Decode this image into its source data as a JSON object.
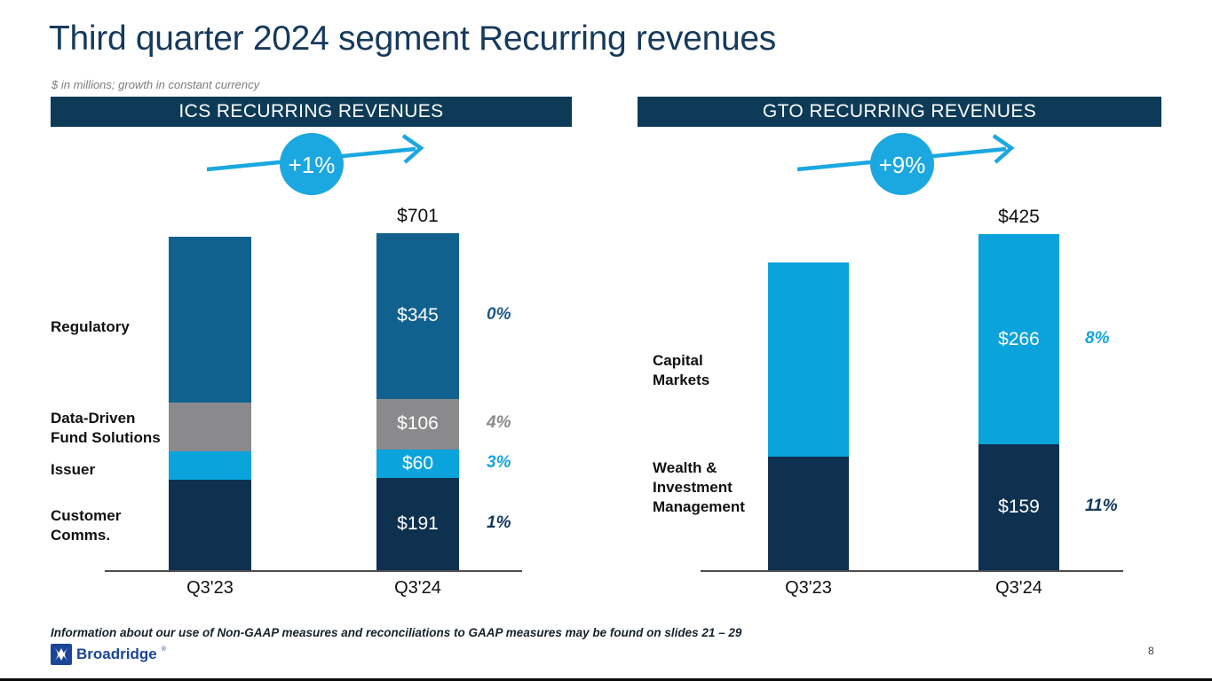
{
  "slide": {
    "title": "Third quarter 2024 segment Recurring revenues",
    "subtitle": "$ in millions; growth in constant currency",
    "footnote": "Information about our use of Non-GAAP measures and reconciliations to GAAP measures may be found on slides 21 – 29",
    "page_number": "8",
    "logo": {
      "text": "Broadridge",
      "mark": "®"
    },
    "accent_colors": {
      "header_navy": "#0D3A57",
      "title_navy": "#163A5C",
      "badge_cyan": "#1BA7E0",
      "axis_gray": "#4d4d4d"
    }
  },
  "chart_data": [
    {
      "type": "bar",
      "stacked": true,
      "header": "ICS RECURRING REVENUES",
      "growth_badge": "+1%",
      "units": "$ in millions",
      "x_categories": [
        "Q3'23",
        "Q3'24"
      ],
      "q323_values_estimated": true,
      "totals": [
        null,
        "$701"
      ],
      "series": [
        {
          "name": "Regulatory",
          "side_label": "Regulatory",
          "color": "#11618F",
          "values": [
            345,
            345
          ],
          "value_labels": [
            null,
            "$345"
          ],
          "growth": "0%",
          "growth_color": "#1D5A8A"
        },
        {
          "name": "Data-Driven Fund Solutions",
          "side_label": "Data-Driven\nFund Solutions",
          "color": "#8A8A8D",
          "values": [
            102,
            106
          ],
          "value_labels": [
            null,
            "$106"
          ],
          "growth": "4%",
          "growth_color": "#8A8A8D"
        },
        {
          "name": "Issuer",
          "side_label": "Issuer",
          "color": "#0BA3DC",
          "values": [
            58,
            60
          ],
          "value_labels": [
            null,
            "$60"
          ],
          "growth": "3%",
          "growth_color": "#14A5DE"
        },
        {
          "name": "Customer Comms.",
          "side_label": "Customer\nComms.",
          "color": "#0E3150",
          "values": [
            189,
            191
          ],
          "value_labels": [
            null,
            "$191"
          ],
          "growth": "1%",
          "growth_color": "#12395C"
        }
      ]
    },
    {
      "type": "bar",
      "stacked": true,
      "header": "GTO RECURRING REVENUES",
      "growth_badge": "+9%",
      "units": "$ in millions",
      "x_categories": [
        "Q3'23",
        "Q3'24"
      ],
      "q323_values_estimated": true,
      "totals": [
        null,
        "$425"
      ],
      "series": [
        {
          "name": "Capital Markets",
          "side_label": "Capital\nMarkets",
          "color": "#0BA3DC",
          "values": [
            246,
            266
          ],
          "value_labels": [
            null,
            "$266"
          ],
          "growth": "8%",
          "growth_color": "#14A5DE"
        },
        {
          "name": "Wealth & Investment Management",
          "side_label": "Wealth &\nInvestment\nManagement",
          "color": "#0E3150",
          "values": [
            143,
            159
          ],
          "value_labels": [
            null,
            "$159"
          ],
          "growth": "11%",
          "growth_color": "#12395C"
        }
      ]
    }
  ]
}
